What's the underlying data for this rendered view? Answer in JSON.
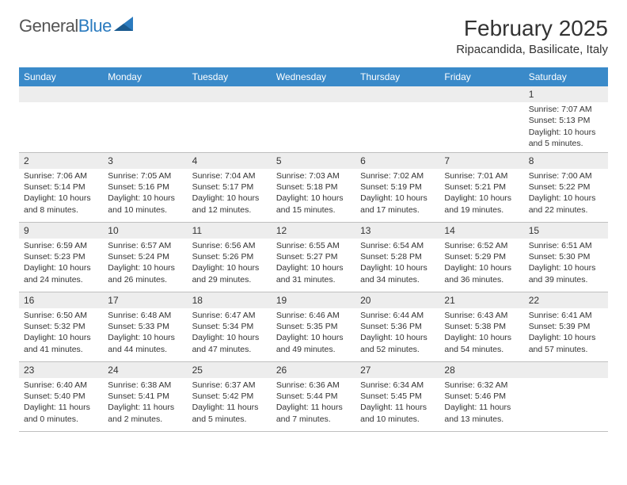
{
  "logo": {
    "text_gray": "General",
    "text_blue": "Blue"
  },
  "title": "February 2025",
  "location": "Ripacandida, Basilicate, Italy",
  "colors": {
    "header_bg": "#3a8ac9",
    "header_text": "#ffffff",
    "daynum_bg": "#ededed",
    "border": "#bfbfbf",
    "text": "#333333",
    "logo_gray": "#555555",
    "logo_blue": "#2b7bbf"
  },
  "day_names": [
    "Sunday",
    "Monday",
    "Tuesday",
    "Wednesday",
    "Thursday",
    "Friday",
    "Saturday"
  ],
  "weeks": [
    [
      null,
      null,
      null,
      null,
      null,
      null,
      {
        "n": "1",
        "sr": "7:07 AM",
        "ss": "5:13 PM",
        "dl": "10 hours and 5 minutes."
      }
    ],
    [
      {
        "n": "2",
        "sr": "7:06 AM",
        "ss": "5:14 PM",
        "dl": "10 hours and 8 minutes."
      },
      {
        "n": "3",
        "sr": "7:05 AM",
        "ss": "5:16 PM",
        "dl": "10 hours and 10 minutes."
      },
      {
        "n": "4",
        "sr": "7:04 AM",
        "ss": "5:17 PM",
        "dl": "10 hours and 12 minutes."
      },
      {
        "n": "5",
        "sr": "7:03 AM",
        "ss": "5:18 PM",
        "dl": "10 hours and 15 minutes."
      },
      {
        "n": "6",
        "sr": "7:02 AM",
        "ss": "5:19 PM",
        "dl": "10 hours and 17 minutes."
      },
      {
        "n": "7",
        "sr": "7:01 AM",
        "ss": "5:21 PM",
        "dl": "10 hours and 19 minutes."
      },
      {
        "n": "8",
        "sr": "7:00 AM",
        "ss": "5:22 PM",
        "dl": "10 hours and 22 minutes."
      }
    ],
    [
      {
        "n": "9",
        "sr": "6:59 AM",
        "ss": "5:23 PM",
        "dl": "10 hours and 24 minutes."
      },
      {
        "n": "10",
        "sr": "6:57 AM",
        "ss": "5:24 PM",
        "dl": "10 hours and 26 minutes."
      },
      {
        "n": "11",
        "sr": "6:56 AM",
        "ss": "5:26 PM",
        "dl": "10 hours and 29 minutes."
      },
      {
        "n": "12",
        "sr": "6:55 AM",
        "ss": "5:27 PM",
        "dl": "10 hours and 31 minutes."
      },
      {
        "n": "13",
        "sr": "6:54 AM",
        "ss": "5:28 PM",
        "dl": "10 hours and 34 minutes."
      },
      {
        "n": "14",
        "sr": "6:52 AM",
        "ss": "5:29 PM",
        "dl": "10 hours and 36 minutes."
      },
      {
        "n": "15",
        "sr": "6:51 AM",
        "ss": "5:30 PM",
        "dl": "10 hours and 39 minutes."
      }
    ],
    [
      {
        "n": "16",
        "sr": "6:50 AM",
        "ss": "5:32 PM",
        "dl": "10 hours and 41 minutes."
      },
      {
        "n": "17",
        "sr": "6:48 AM",
        "ss": "5:33 PM",
        "dl": "10 hours and 44 minutes."
      },
      {
        "n": "18",
        "sr": "6:47 AM",
        "ss": "5:34 PM",
        "dl": "10 hours and 47 minutes."
      },
      {
        "n": "19",
        "sr": "6:46 AM",
        "ss": "5:35 PM",
        "dl": "10 hours and 49 minutes."
      },
      {
        "n": "20",
        "sr": "6:44 AM",
        "ss": "5:36 PM",
        "dl": "10 hours and 52 minutes."
      },
      {
        "n": "21",
        "sr": "6:43 AM",
        "ss": "5:38 PM",
        "dl": "10 hours and 54 minutes."
      },
      {
        "n": "22",
        "sr": "6:41 AM",
        "ss": "5:39 PM",
        "dl": "10 hours and 57 minutes."
      }
    ],
    [
      {
        "n": "23",
        "sr": "6:40 AM",
        "ss": "5:40 PM",
        "dl": "11 hours and 0 minutes."
      },
      {
        "n": "24",
        "sr": "6:38 AM",
        "ss": "5:41 PM",
        "dl": "11 hours and 2 minutes."
      },
      {
        "n": "25",
        "sr": "6:37 AM",
        "ss": "5:42 PM",
        "dl": "11 hours and 5 minutes."
      },
      {
        "n": "26",
        "sr": "6:36 AM",
        "ss": "5:44 PM",
        "dl": "11 hours and 7 minutes."
      },
      {
        "n": "27",
        "sr": "6:34 AM",
        "ss": "5:45 PM",
        "dl": "11 hours and 10 minutes."
      },
      {
        "n": "28",
        "sr": "6:32 AM",
        "ss": "5:46 PM",
        "dl": "11 hours and 13 minutes."
      },
      null
    ]
  ],
  "sunrise_label": "Sunrise: ",
  "sunset_label": "Sunset: ",
  "daylight_label": "Daylight: "
}
